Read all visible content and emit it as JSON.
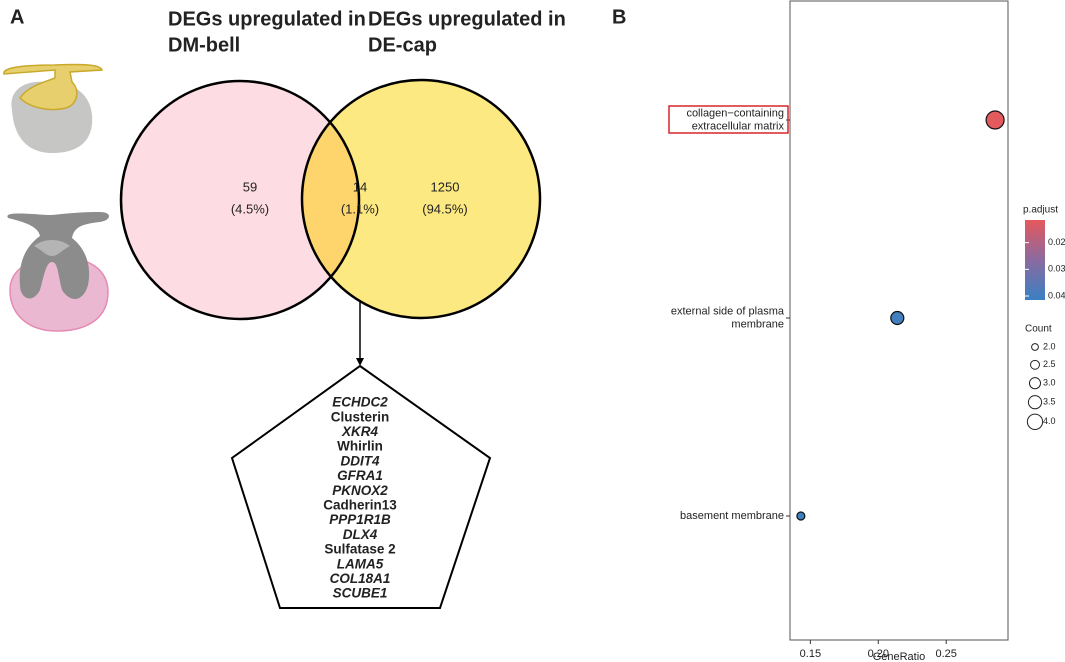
{
  "panel_labels": [
    "A",
    "B"
  ],
  "chart_data": [
    {
      "type": "venn",
      "sets": [
        {
          "name": [
            "DEGs upregulated in",
            "DM-bell"
          ],
          "color": "#fddde3"
        },
        {
          "name": [
            "DEGs upregulated in",
            "DE-cap"
          ],
          "color": "#fde981"
        }
      ],
      "overlap_color": "#fdd56c",
      "values": [
        59,
        14,
        1250
      ],
      "percents": [
        4.5,
        1.1,
        94.5
      ],
      "percent_labels": [
        "(4.5%)",
        "(1.1%)",
        "(94.5%)"
      ],
      "genes": [
        "ECHDC2",
        "Clusterin",
        "XKR4",
        "Whirlin",
        "DDIT4",
        "GFRA1",
        "PKNOX2",
        "Cadherin13",
        "PPP1R1B",
        "DLX4",
        "Sulfatase 2",
        "LAMA5",
        "COL18A1",
        "SCUBE1"
      ],
      "italic": [
        true,
        false,
        true,
        false,
        true,
        true,
        true,
        false,
        true,
        true,
        false,
        true,
        true,
        true
      ]
    },
    {
      "type": "scatter",
      "categories": [
        [
          "collagen−containing",
          "extracellular matrix"
        ],
        [
          "external side of plasma",
          "membrane"
        ],
        [
          "basement membrane"
        ]
      ],
      "values": [
        0.286,
        0.214,
        0.143
      ],
      "p_adjust": [
        0.012,
        0.04,
        0.041
      ],
      "count": [
        4,
        3,
        2
      ],
      "highlight": 0,
      "highlight_color": "#d62728",
      "xlabel": "GeneRatio",
      "xlim": [
        0.135,
        0.2955
      ],
      "xticks": [
        0.15,
        {
          "value": 0.2,
          "label": "0.20"
        },
        0.25
      ],
      "color_legend_title": "p.adjust",
      "color_low": "#e5585c",
      "color_high": "#3a80c3",
      "clim": [
        0.0115,
        0.0415
      ],
      "cticks": [
        0.02,
        0.03,
        0.04
      ],
      "size_legend_title": "Count",
      "size_ticks": [
        {
          "value": 2,
          "label": "2.0"
        },
        {
          "value": 2.5,
          "label": "2.5"
        },
        {
          "value": 3,
          "label": "3.0"
        },
        {
          "value": 3.5,
          "label": "3.5"
        },
        {
          "value": 4,
          "label": "4.0"
        }
      ]
    }
  ]
}
